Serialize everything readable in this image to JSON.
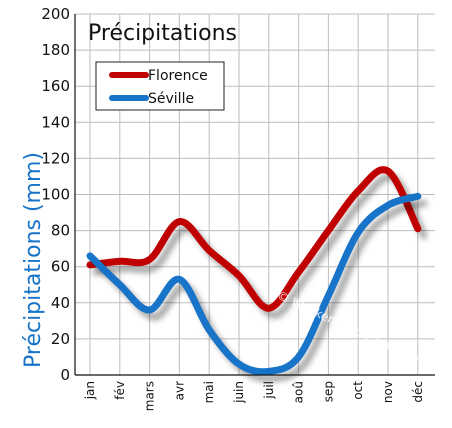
{
  "chart_data": {
    "type": "line",
    "title": "Précipitations",
    "ylabel": "Précipitations (mm)",
    "xlabel": "",
    "ylim": [
      0,
      200
    ],
    "yticks": [
      0,
      20,
      40,
      60,
      80,
      100,
      120,
      140,
      160,
      180,
      200
    ],
    "grid": true,
    "legend_position": "top-left",
    "categories": [
      "jan",
      "fév",
      "mars",
      "avr",
      "mai",
      "juin",
      "juil",
      "aoû",
      "sep",
      "oct",
      "nov",
      "déc"
    ],
    "series": [
      {
        "name": "Florence",
        "color": "#c00000",
        "values": [
          61,
          63,
          64,
          85,
          69,
          55,
          37,
          57,
          80,
          102,
          113,
          81
        ]
      },
      {
        "name": "Séville",
        "color": "#1874c8",
        "values": [
          66,
          50,
          36,
          53,
          25,
          6,
          2,
          10,
          44,
          79,
          94,
          99
        ]
      }
    ],
    "watermark": "© WeekendPackPack.com"
  }
}
